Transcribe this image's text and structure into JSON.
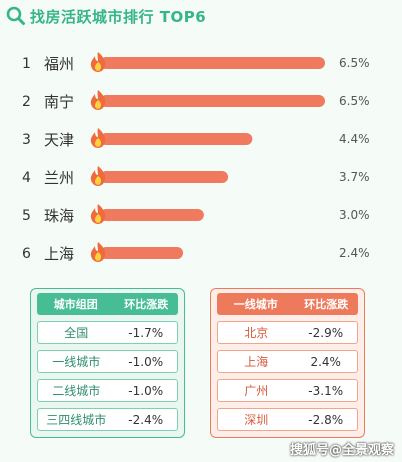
{
  "title": "找房活跃城市排行 TOP6",
  "chart_data": {
    "type": "bar",
    "orientation": "horizontal",
    "title": "找房活跃城市排行 TOP6",
    "ranks": [
      "1",
      "2",
      "3",
      "4",
      "5",
      "6"
    ],
    "categories": [
      "福州",
      "南宁",
      "天津",
      "兰州",
      "珠海",
      "上海"
    ],
    "values": [
      6.5,
      6.5,
      4.4,
      3.7,
      3.0,
      2.4
    ],
    "value_labels": [
      "6.5%",
      "6.5%",
      "4.4%",
      "3.7%",
      "3.0%",
      "2.4%"
    ],
    "xlim": [
      0,
      6.5
    ],
    "grid": false,
    "bar_color": "#ef7a5e"
  },
  "tables": {
    "left": {
      "headers": [
        "城市组团",
        "环比涨跌"
      ],
      "rows": [
        {
          "name": "全国",
          "value": "-1.7%"
        },
        {
          "name": "一线城市",
          "value": "-1.0%"
        },
        {
          "name": "二线城市",
          "value": "-1.0%"
        },
        {
          "name": "三四线城市",
          "value": "-2.4%"
        }
      ]
    },
    "right": {
      "headers": [
        "一线城市",
        "环比涨跌"
      ],
      "rows": [
        {
          "name": "北京",
          "value": "-2.9%"
        },
        {
          "name": "上海",
          "value": "2.4%"
        },
        {
          "name": "广州",
          "value": "-3.1%"
        },
        {
          "name": "深圳",
          "value": "-2.8%"
        }
      ]
    }
  },
  "watermark": "搜狐号@全景观察",
  "icons": {
    "title": "search-icon",
    "bar": "flame-icon"
  }
}
